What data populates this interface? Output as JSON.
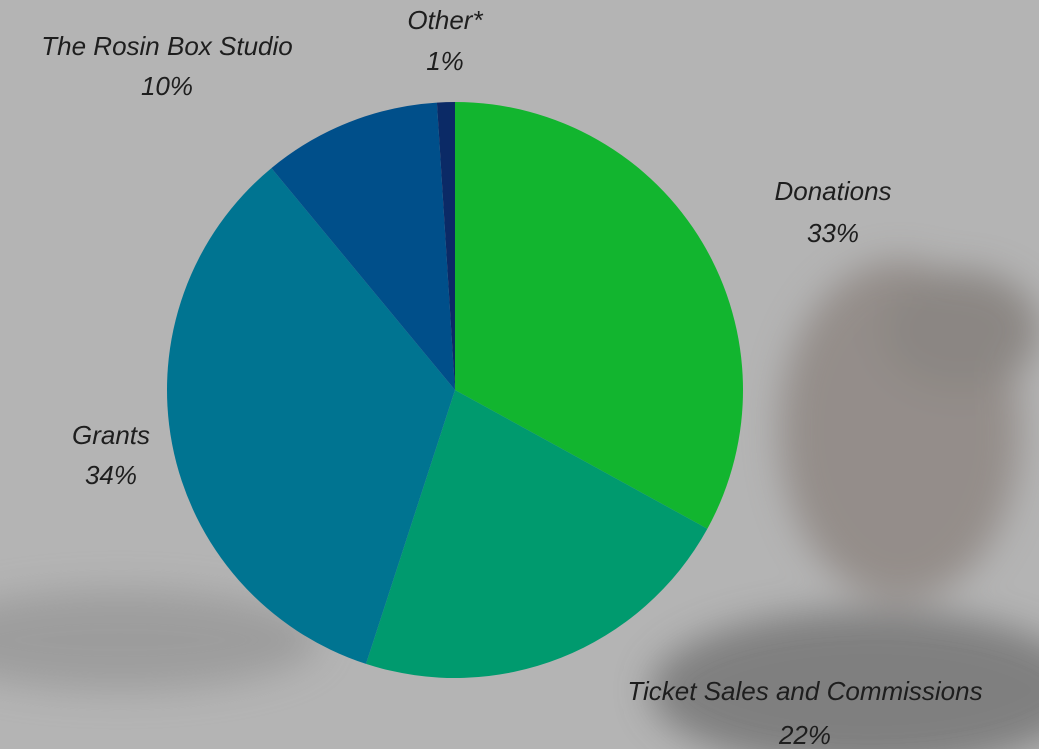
{
  "chart_data": {
    "type": "pie",
    "categories": [
      "Donations",
      "Ticket Sales and Commissions",
      "Grants",
      "The Rosin Box Studio",
      "Other*"
    ],
    "values": [
      33,
      22,
      34,
      10,
      1
    ],
    "value_labels": [
      "33%",
      "22%",
      "34%",
      "10%",
      "1%"
    ],
    "colors": [
      "#12b52f",
      "#009a6e",
      "#007491",
      "#004f8a",
      "#0b2a66"
    ]
  }
}
